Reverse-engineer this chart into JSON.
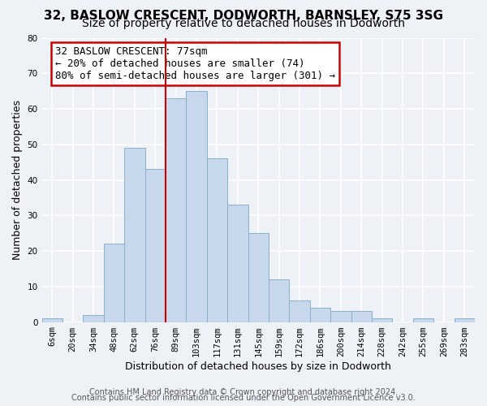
{
  "title": "32, BASLOW CRESCENT, DODWORTH, BARNSLEY, S75 3SG",
  "subtitle": "Size of property relative to detached houses in Dodworth",
  "xlabel": "Distribution of detached houses by size in Dodworth",
  "ylabel": "Number of detached properties",
  "bar_labels": [
    "6sqm",
    "20sqm",
    "34sqm",
    "48sqm",
    "62sqm",
    "76sqm",
    "89sqm",
    "103sqm",
    "117sqm",
    "131sqm",
    "145sqm",
    "159sqm",
    "172sqm",
    "186sqm",
    "200sqm",
    "214sqm",
    "228sqm",
    "242sqm",
    "255sqm",
    "269sqm",
    "283sqm"
  ],
  "bar_values": [
    1,
    0,
    2,
    22,
    49,
    43,
    63,
    65,
    46,
    33,
    25,
    12,
    6,
    4,
    3,
    3,
    1,
    0,
    1,
    0,
    1
  ],
  "bar_color": "#c8d8ec",
  "bar_edge_color": "#8ab0cc",
  "vline_x": 5.5,
  "vline_color": "#cc0000",
  "annotation_line1": "32 BASLOW CRESCENT: 77sqm",
  "annotation_line2": "← 20% of detached houses are smaller (74)",
  "annotation_line3": "80% of semi-detached houses are larger (301) →",
  "annotation_box_color": "white",
  "annotation_box_edge": "#cc0000",
  "ylim": [
    0,
    80
  ],
  "yticks": [
    0,
    10,
    20,
    30,
    40,
    50,
    60,
    70,
    80
  ],
  "footer_line1": "Contains HM Land Registry data © Crown copyright and database right 2024.",
  "footer_line2": "Contains public sector information licensed under the Open Government Licence v3.0.",
  "bg_color": "#eef2f7",
  "plot_bg_color": "#eef2f7",
  "title_fontsize": 11,
  "subtitle_fontsize": 10,
  "axis_label_fontsize": 9,
  "tick_fontsize": 7.5,
  "footer_fontsize": 7,
  "annotation_fontsize": 9
}
